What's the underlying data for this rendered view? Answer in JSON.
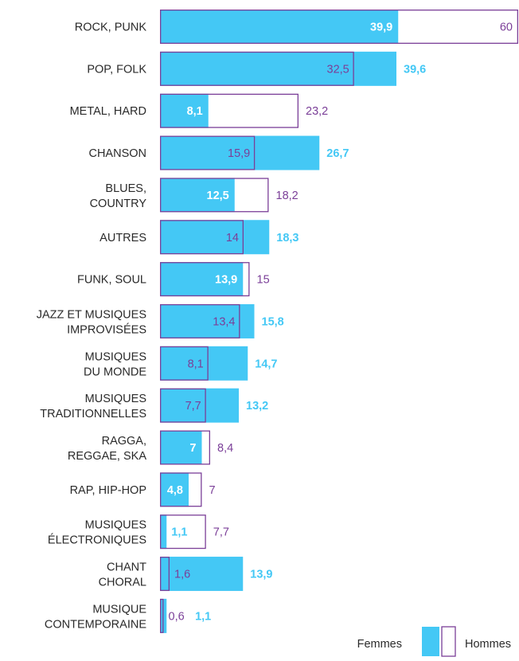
{
  "chart_data": {
    "type": "bar",
    "orientation": "horizontal",
    "categories": [
      [
        "ROCK, PUNK"
      ],
      [
        "POP, FOLK"
      ],
      [
        "METAL, HARD"
      ],
      [
        "CHANSON"
      ],
      [
        "BLUES,",
        "COUNTRY"
      ],
      [
        "AUTRES"
      ],
      [
        "FUNK, SOUL"
      ],
      [
        "JAZZ ET MUSIQUES",
        "IMPROVISÉES"
      ],
      [
        "MUSIQUES",
        "DU MONDE"
      ],
      [
        "MUSIQUES",
        "TRADITIONNELLES"
      ],
      [
        "RAGGA,",
        "REGGAE, SKA"
      ],
      [
        "RAP, HIP-HOP"
      ],
      [
        "MUSIQUES",
        "ÉLECTRONIQUES"
      ],
      [
        "CHANT",
        "CHORAL"
      ],
      [
        "MUSIQUE",
        "CONTEMPORAINE"
      ]
    ],
    "series": [
      {
        "name": "Femmes",
        "color": "#44c8f5",
        "values": [
          39.9,
          39.6,
          8.1,
          26.7,
          12.5,
          18.3,
          13.9,
          15.8,
          14.7,
          13.2,
          7,
          4.8,
          1.1,
          13.9,
          1.1
        ],
        "labels": [
          "39,9",
          "39,6",
          "8,1",
          "26,7",
          "12,5",
          "18,3",
          "13,9",
          "15,8",
          "14,7",
          "13,2",
          "7",
          "4,8",
          "1,1",
          "13,9",
          "1,1"
        ]
      },
      {
        "name": "Hommes",
        "color": "#7b3f98",
        "values": [
          60,
          32.5,
          23.2,
          15.9,
          18.2,
          14,
          15,
          13.4,
          8.1,
          7.7,
          8.4,
          7,
          7.7,
          1.6,
          0.6
        ],
        "labels": [
          "60",
          "32,5",
          "23,2",
          "15,9",
          "18,2",
          "14",
          "15",
          "13,4",
          "8,1",
          "7,7",
          "8,4",
          "7",
          "7,7",
          "1,6",
          "0,6"
        ]
      }
    ],
    "xlim": [
      0,
      60
    ],
    "grid": false,
    "legend_position": "bottom-right"
  }
}
